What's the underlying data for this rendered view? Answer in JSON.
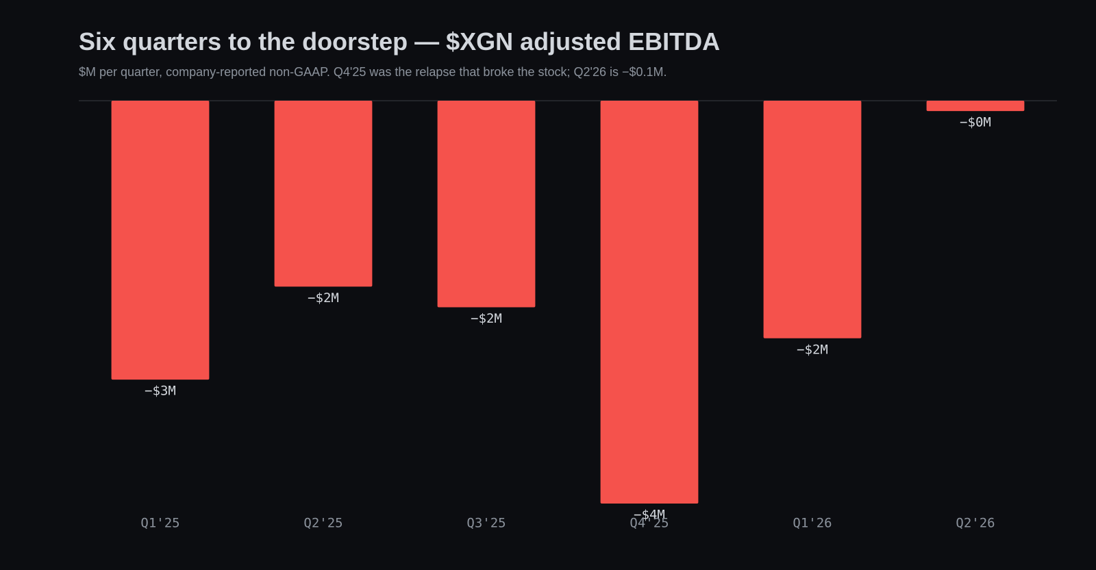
{
  "chart_data": {
    "type": "bar",
    "title": "Six quarters to the doorstep — $XGN adjusted EBITDA",
    "subtitle": "$M per quarter, company-reported non-GAAP. Q4'25 was the relapse that broke the stock; Q2'26 is −$0.1M.",
    "categories": [
      "Q1'25",
      "Q2'25",
      "Q3'25",
      "Q4'25",
      "Q1'26",
      "Q2'26"
    ],
    "values": [
      -2.7,
      -1.8,
      -2.0,
      -3.9,
      -2.3,
      -0.1
    ],
    "value_labels": [
      "−$3M",
      "−$2M",
      "−$2M",
      "−$4M",
      "−$2M",
      "−$0M"
    ],
    "color": "#f5524c",
    "ylim": [
      -3.9,
      0
    ]
  }
}
